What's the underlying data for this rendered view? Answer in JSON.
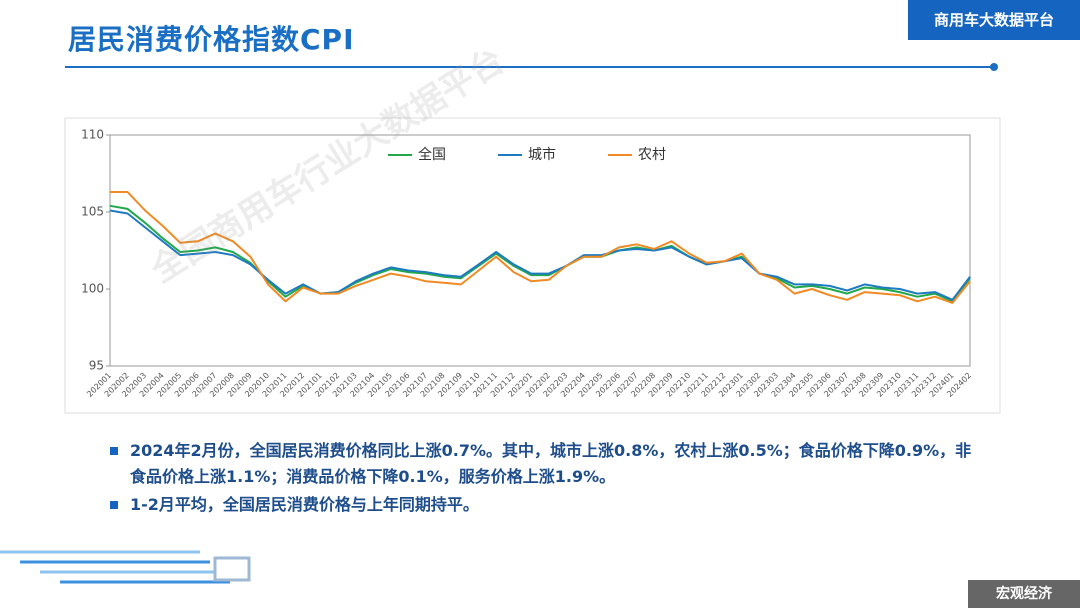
{
  "header": {
    "title": "居民消费价格指数CPI",
    "badge": "商用车大数据平台"
  },
  "chart_data": {
    "type": "line",
    "categories": [
      "202001",
      "202002",
      "202003",
      "202004",
      "202005",
      "202006",
      "202007",
      "202008",
      "202009",
      "202010",
      "202011",
      "202012",
      "202101",
      "202102",
      "202103",
      "202104",
      "202105",
      "202106",
      "202107",
      "202108",
      "202109",
      "202110",
      "202111",
      "202112",
      "202201",
      "202202",
      "202203",
      "202204",
      "202205",
      "202206",
      "202207",
      "202208",
      "202209",
      "202210",
      "202211",
      "202212",
      "202301",
      "202302",
      "202303",
      "202304",
      "202305",
      "202306",
      "202307",
      "202308",
      "202309",
      "202310",
      "202311",
      "202312",
      "202401",
      "202402"
    ],
    "series": [
      {
        "name": "全国",
        "color": "#22a84a",
        "values": [
          105.4,
          105.2,
          104.3,
          103.3,
          102.4,
          102.5,
          102.7,
          102.4,
          101.7,
          100.5,
          99.5,
          100.2,
          99.7,
          99.8,
          100.4,
          100.9,
          101.3,
          101.1,
          101.0,
          100.8,
          100.7,
          101.5,
          102.3,
          101.5,
          100.9,
          100.9,
          101.5,
          102.1,
          102.1,
          102.5,
          102.7,
          102.5,
          102.8,
          102.1,
          101.6,
          101.8,
          102.1,
          101.0,
          100.7,
          100.1,
          100.2,
          100.0,
          99.7,
          100.1,
          100.0,
          99.8,
          99.5,
          99.7,
          99.2,
          100.7
        ]
      },
      {
        "name": "城市",
        "color": "#1f7bc0",
        "values": [
          105.1,
          104.9,
          104.0,
          103.1,
          102.2,
          102.3,
          102.4,
          102.2,
          101.6,
          100.6,
          99.7,
          100.3,
          99.7,
          99.8,
          100.5,
          101.0,
          101.4,
          101.2,
          101.1,
          100.9,
          100.8,
          101.6,
          102.4,
          101.6,
          101.0,
          101.0,
          101.5,
          102.2,
          102.2,
          102.5,
          102.6,
          102.5,
          102.7,
          102.1,
          101.6,
          101.8,
          102.0,
          101.0,
          100.8,
          100.3,
          100.3,
          100.2,
          99.9,
          100.3,
          100.1,
          100.0,
          99.7,
          99.8,
          99.3,
          100.8
        ]
      },
      {
        "name": "农村",
        "color": "#f08a24",
        "values": [
          106.3,
          106.3,
          105.1,
          104.1,
          103.0,
          103.1,
          103.6,
          103.1,
          102.1,
          100.3,
          99.2,
          100.1,
          99.7,
          99.7,
          100.2,
          100.6,
          101.0,
          100.8,
          100.5,
          100.4,
          100.3,
          101.2,
          102.1,
          101.1,
          100.5,
          100.6,
          101.5,
          102.1,
          102.1,
          102.7,
          102.9,
          102.6,
          103.1,
          102.3,
          101.7,
          101.8,
          102.3,
          101.0,
          100.6,
          99.7,
          100.0,
          99.6,
          99.3,
          99.8,
          99.7,
          99.6,
          99.2,
          99.5,
          99.1,
          100.5
        ]
      }
    ],
    "ylim": [
      95,
      110
    ],
    "yticks": [
      95,
      100,
      105,
      110
    ],
    "grid": false,
    "legend": "top"
  },
  "watermark": "全国商用车行业大数据平台",
  "bullets": [
    "2024年2月份，全国居民消费价格同比上涨0.7%。其中，城市上涨0.8%，农村上涨0.5%；食品价格下降0.9%，非食品价格上涨1.1%；消费品价格下降0.1%，服务价格上涨1.9%。",
    "1-2月平均，全国居民消费价格与上年同期持平。"
  ],
  "footer": "宏观经济"
}
